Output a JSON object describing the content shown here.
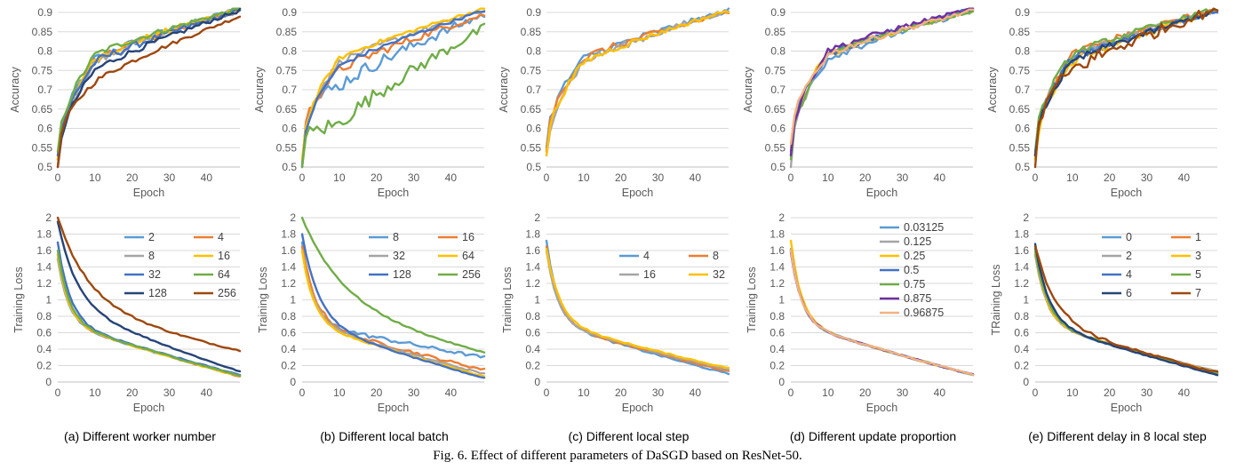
{
  "figure_caption": "Fig. 6.  Effect of different parameters of DaSGD based on ResNet-50.",
  "colors": {
    "blue": "#5B9BD5",
    "orange": "#ED7D31",
    "gray": "#A5A5A5",
    "gold": "#FFC000",
    "darkblue": "#4472C4",
    "green": "#70AD47",
    "navy": "#264478",
    "brown": "#9E480E",
    "purple": "#7030A0",
    "lightorange": "#F4B183"
  },
  "panels": [
    {
      "caption": "(a) Different worker number",
      "legend": [
        "2",
        "4",
        "8",
        "16",
        "32",
        "64",
        "128",
        "256"
      ],
      "acc": [
        {
          "y0": 0.53,
          "y10": 0.78,
          "y49": 0.91,
          "k": 0.55,
          "n": 0.01,
          "c": "blue"
        },
        {
          "y0": 0.52,
          "y10": 0.78,
          "y49": 0.905,
          "k": 0.55,
          "n": 0.01,
          "c": "orange"
        },
        {
          "y0": 0.52,
          "y10": 0.77,
          "y49": 0.905,
          "k": 0.55,
          "n": 0.012,
          "c": "gray"
        },
        {
          "y0": 0.52,
          "y10": 0.78,
          "y49": 0.91,
          "k": 0.55,
          "n": 0.01,
          "c": "gold"
        },
        {
          "y0": 0.53,
          "y10": 0.77,
          "y49": 0.905,
          "k": 0.55,
          "n": 0.01,
          "c": "darkblue"
        },
        {
          "y0": 0.54,
          "y10": 0.79,
          "y49": 0.91,
          "k": 0.55,
          "n": 0.008,
          "c": "green"
        },
        {
          "y0": 0.5,
          "y10": 0.75,
          "y49": 0.905,
          "k": 0.5,
          "n": 0.008,
          "c": "navy"
        },
        {
          "y0": 0.5,
          "y10": 0.72,
          "y49": 0.89,
          "k": 0.4,
          "n": 0.006,
          "c": "brown"
        }
      ],
      "loss": [
        {
          "y0": 1.5,
          "y49": 0.07,
          "k": 0.35,
          "n": 0.01,
          "c": "blue"
        },
        {
          "y0": 1.55,
          "y49": 0.07,
          "k": 0.35,
          "n": 0.01,
          "c": "orange"
        },
        {
          "y0": 1.5,
          "y49": 0.08,
          "k": 0.35,
          "n": 0.01,
          "c": "gray"
        },
        {
          "y0": 1.55,
          "y49": 0.07,
          "k": 0.35,
          "n": 0.01,
          "c": "gold"
        },
        {
          "y0": 1.7,
          "y49": 0.09,
          "k": 0.3,
          "n": 0.01,
          "c": "darkblue"
        },
        {
          "y0": 1.6,
          "y49": 0.08,
          "k": 0.33,
          "n": 0.01,
          "c": "green"
        },
        {
          "y0": 1.95,
          "y49": 0.13,
          "k": 0.2,
          "n": 0.01,
          "c": "navy"
        },
        {
          "y0": 2.0,
          "y49": 0.38,
          "k": 0.12,
          "n": 0.012,
          "c": "brown"
        }
      ]
    },
    {
      "caption": "(b) Different local batch",
      "legend": [
        "8",
        "16",
        "32",
        "64",
        "128",
        "256"
      ],
      "acc": [
        {
          "y0": 0.5,
          "y10": 0.71,
          "y49": 0.895,
          "k": 0.2,
          "n": 0.018,
          "c": "blue"
        },
        {
          "y0": 0.5,
          "y10": 0.75,
          "y49": 0.895,
          "k": 0.35,
          "n": 0.012,
          "c": "orange"
        },
        {
          "y0": 0.51,
          "y10": 0.77,
          "y49": 0.905,
          "k": 0.45,
          "n": 0.008,
          "c": "gray"
        },
        {
          "y0": 0.52,
          "y10": 0.78,
          "y49": 0.91,
          "k": 0.5,
          "n": 0.006,
          "c": "gold"
        },
        {
          "y0": 0.5,
          "y10": 0.76,
          "y49": 0.905,
          "k": 0.45,
          "n": 0.006,
          "c": "darkblue"
        },
        {
          "y0": 0.44,
          "y10": 0.61,
          "y49": 0.86,
          "k": 0.1,
          "n": 0.02,
          "c": "green"
        }
      ],
      "loss": [
        {
          "y0": 1.7,
          "y49": 0.3,
          "k": 0.35,
          "n": 0.03,
          "c": "blue"
        },
        {
          "y0": 1.65,
          "y49": 0.15,
          "k": 0.28,
          "n": 0.025,
          "c": "orange"
        },
        {
          "y0": 1.6,
          "y49": 0.1,
          "k": 0.3,
          "n": 0.015,
          "c": "gray"
        },
        {
          "y0": 1.6,
          "y49": 0.07,
          "k": 0.33,
          "n": 0.01,
          "c": "gold"
        },
        {
          "y0": 1.8,
          "y49": 0.05,
          "k": 0.22,
          "n": 0.008,
          "c": "darkblue"
        },
        {
          "y0": 2.0,
          "y49": 0.35,
          "k": 0.09,
          "n": 0.01,
          "c": "green"
        }
      ]
    },
    {
      "caption": "(c) Different local step",
      "legend": [
        "4",
        "8",
        "16",
        "32"
      ],
      "acc": [
        {
          "y0": 0.55,
          "y10": 0.78,
          "y49": 0.905,
          "k": 0.5,
          "n": 0.01,
          "c": "blue"
        },
        {
          "y0": 0.54,
          "y10": 0.78,
          "y49": 0.9,
          "k": 0.5,
          "n": 0.01,
          "c": "orange"
        },
        {
          "y0": 0.53,
          "y10": 0.77,
          "y49": 0.905,
          "k": 0.5,
          "n": 0.01,
          "c": "gray"
        },
        {
          "y0": 0.53,
          "y10": 0.77,
          "y49": 0.905,
          "k": 0.5,
          "n": 0.008,
          "c": "gold"
        }
      ],
      "loss": [
        {
          "y0": 1.72,
          "y49": 0.1,
          "k": 0.33,
          "n": 0.012,
          "c": "blue"
        },
        {
          "y0": 1.65,
          "y49": 0.13,
          "k": 0.33,
          "n": 0.01,
          "c": "orange"
        },
        {
          "y0": 1.6,
          "y49": 0.15,
          "k": 0.33,
          "n": 0.01,
          "c": "gray"
        },
        {
          "y0": 1.62,
          "y49": 0.17,
          "k": 0.28,
          "n": 0.01,
          "c": "gold"
        }
      ]
    },
    {
      "caption": "(d) Different update proportion",
      "legend": [
        "0.03125",
        "0.125",
        "0.25",
        "0.5",
        "0.75",
        "0.875",
        "0.96875"
      ],
      "acc": [
        {
          "y0": 0.53,
          "y10": 0.78,
          "y49": 0.905,
          "k": 0.5,
          "n": 0.01,
          "c": "blue"
        },
        {
          "y0": 0.5,
          "y10": 0.79,
          "y49": 0.905,
          "k": 0.5,
          "n": 0.01,
          "c": "gray"
        },
        {
          "y0": 0.55,
          "y10": 0.79,
          "y49": 0.905,
          "k": 0.5,
          "n": 0.008,
          "c": "gold"
        },
        {
          "y0": 0.54,
          "y10": 0.79,
          "y49": 0.91,
          "k": 0.5,
          "n": 0.008,
          "c": "darkblue"
        },
        {
          "y0": 0.52,
          "y10": 0.79,
          "y49": 0.905,
          "k": 0.5,
          "n": 0.008,
          "c": "green"
        },
        {
          "y0": 0.53,
          "y10": 0.8,
          "y49": 0.91,
          "k": 0.5,
          "n": 0.008,
          "c": "purple"
        },
        {
          "y0": 0.56,
          "y10": 0.79,
          "y49": 0.905,
          "k": 0.5,
          "n": 0.008,
          "c": "lightorange"
        }
      ],
      "loss": [
        {
          "y0": 1.6,
          "y49": 0.09,
          "k": 0.35,
          "n": 0.01,
          "c": "blue"
        },
        {
          "y0": 1.62,
          "y49": 0.09,
          "k": 0.35,
          "n": 0.01,
          "c": "gray"
        },
        {
          "y0": 1.72,
          "y49": 0.09,
          "k": 0.35,
          "n": 0.01,
          "c": "gold"
        },
        {
          "y0": 1.6,
          "y49": 0.09,
          "k": 0.35,
          "n": 0.01,
          "c": "darkblue"
        },
        {
          "y0": 1.6,
          "y49": 0.09,
          "k": 0.35,
          "n": 0.01,
          "c": "green"
        },
        {
          "y0": 1.58,
          "y49": 0.09,
          "k": 0.35,
          "n": 0.01,
          "c": "purple"
        },
        {
          "y0": 1.6,
          "y49": 0.09,
          "k": 0.35,
          "n": 0.01,
          "c": "lightorange"
        }
      ]
    },
    {
      "caption": "(e) Different delay in 8 local step",
      "legend": [
        "0",
        "1",
        "2",
        "3",
        "4",
        "5",
        "6",
        "7"
      ],
      "acc": [
        {
          "y0": 0.53,
          "y10": 0.78,
          "y49": 0.905,
          "k": 0.5,
          "n": 0.012,
          "c": "blue"
        },
        {
          "y0": 0.52,
          "y10": 0.79,
          "y49": 0.91,
          "k": 0.5,
          "n": 0.01,
          "c": "orange"
        },
        {
          "y0": 0.53,
          "y10": 0.78,
          "y49": 0.905,
          "k": 0.5,
          "n": 0.012,
          "c": "gray"
        },
        {
          "y0": 0.52,
          "y10": 0.77,
          "y49": 0.905,
          "k": 0.5,
          "n": 0.012,
          "c": "gold"
        },
        {
          "y0": 0.53,
          "y10": 0.78,
          "y49": 0.905,
          "k": 0.5,
          "n": 0.01,
          "c": "darkblue"
        },
        {
          "y0": 0.54,
          "y10": 0.79,
          "y49": 0.91,
          "k": 0.5,
          "n": 0.01,
          "c": "green"
        },
        {
          "y0": 0.53,
          "y10": 0.77,
          "y49": 0.905,
          "k": 0.5,
          "n": 0.01,
          "c": "navy"
        },
        {
          "y0": 0.47,
          "y10": 0.75,
          "y49": 0.91,
          "k": 0.3,
          "n": 0.02,
          "c": "brown"
        }
      ],
      "loss": [
        {
          "y0": 1.6,
          "y49": 0.1,
          "k": 0.33,
          "n": 0.01,
          "c": "blue"
        },
        {
          "y0": 1.55,
          "y49": 0.12,
          "k": 0.33,
          "n": 0.012,
          "c": "orange"
        },
        {
          "y0": 1.55,
          "y49": 0.13,
          "k": 0.33,
          "n": 0.01,
          "c": "gray"
        },
        {
          "y0": 1.6,
          "y49": 0.12,
          "k": 0.33,
          "n": 0.01,
          "c": "gold"
        },
        {
          "y0": 1.62,
          "y49": 0.1,
          "k": 0.3,
          "n": 0.01,
          "c": "darkblue"
        },
        {
          "y0": 1.6,
          "y49": 0.11,
          "k": 0.3,
          "n": 0.01,
          "c": "green"
        },
        {
          "y0": 1.68,
          "y49": 0.09,
          "k": 0.28,
          "n": 0.01,
          "c": "navy"
        },
        {
          "y0": 1.65,
          "y49": 0.12,
          "k": 0.18,
          "n": 0.02,
          "c": "brown"
        }
      ]
    }
  ],
  "chart_data": {
    "type": "line",
    "x_label": "Epoch",
    "x_range": [
      0,
      49
    ],
    "x_ticks": [
      0,
      10,
      20,
      30,
      40
    ],
    "top_row": {
      "ylabel": "Accuracy",
      "ylim": [
        0.5,
        0.9
      ],
      "y_ticks": [
        "0.5",
        "0.55",
        "0.6",
        "0.65",
        "0.7",
        "0.75",
        "0.8",
        "0.85",
        "0.9"
      ]
    },
    "bottom_row": {
      "ylabels": [
        "Training Loss",
        "Training Loss",
        "Training Loss",
        "Training Loss",
        "TRaining Loss"
      ],
      "ylim": [
        0,
        2
      ],
      "y_ticks": [
        "0",
        "0.2",
        "0.4",
        "0.6",
        "0.8",
        "1",
        "1.2",
        "1.4",
        "1.6",
        "1.8",
        "2"
      ]
    },
    "grid": "horizontal",
    "legend_position": "inside-bottom-panel-top-right"
  }
}
